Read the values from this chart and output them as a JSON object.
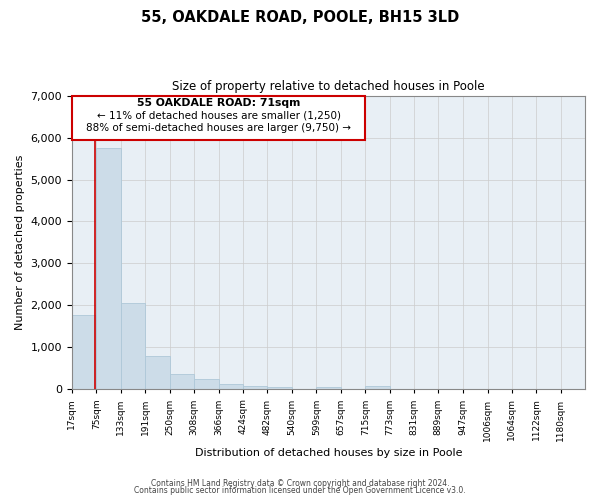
{
  "title": "55, OAKDALE ROAD, POOLE, BH15 3LD",
  "subtitle": "Size of property relative to detached houses in Poole",
  "xlabel": "Distribution of detached houses by size in Poole",
  "ylabel": "Number of detached properties",
  "bar_color": "#ccdce8",
  "bar_edgecolor": "#aec8d8",
  "grid_color": "#cccccc",
  "bg_color": "#ffffff",
  "plot_bg_color": "#e8eff5",
  "annotation_box_color": "#cc0000",
  "annotation_line_color": "#cc0000",
  "annotation_text1": "55 OAKDALE ROAD: 71sqm",
  "annotation_text2": "← 11% of detached houses are smaller (1,250)",
  "annotation_text3": "88% of semi-detached houses are larger (9,750) →",
  "red_line_x": 71,
  "categories": [
    "17sqm",
    "75sqm",
    "133sqm",
    "191sqm",
    "250sqm",
    "308sqm",
    "366sqm",
    "424sqm",
    "482sqm",
    "540sqm",
    "599sqm",
    "657sqm",
    "715sqm",
    "773sqm",
    "831sqm",
    "889sqm",
    "947sqm",
    "1006sqm",
    "1064sqm",
    "1122sqm",
    "1180sqm"
  ],
  "bin_edges": [
    17,
    75,
    133,
    191,
    250,
    308,
    366,
    424,
    482,
    540,
    599,
    657,
    715,
    773,
    831,
    889,
    947,
    1006,
    1064,
    1122,
    1180,
    1238
  ],
  "values": [
    1780,
    5750,
    2050,
    800,
    370,
    240,
    120,
    90,
    60,
    0,
    50,
    0,
    80,
    0,
    0,
    0,
    0,
    0,
    0,
    0,
    0
  ],
  "ylim": [
    0,
    7000
  ],
  "yticks": [
    0,
    1000,
    2000,
    3000,
    4000,
    5000,
    6000,
    7000
  ],
  "footer1": "Contains HM Land Registry data © Crown copyright and database right 2024.",
  "footer2": "Contains public sector information licensed under the Open Government Licence v3.0."
}
